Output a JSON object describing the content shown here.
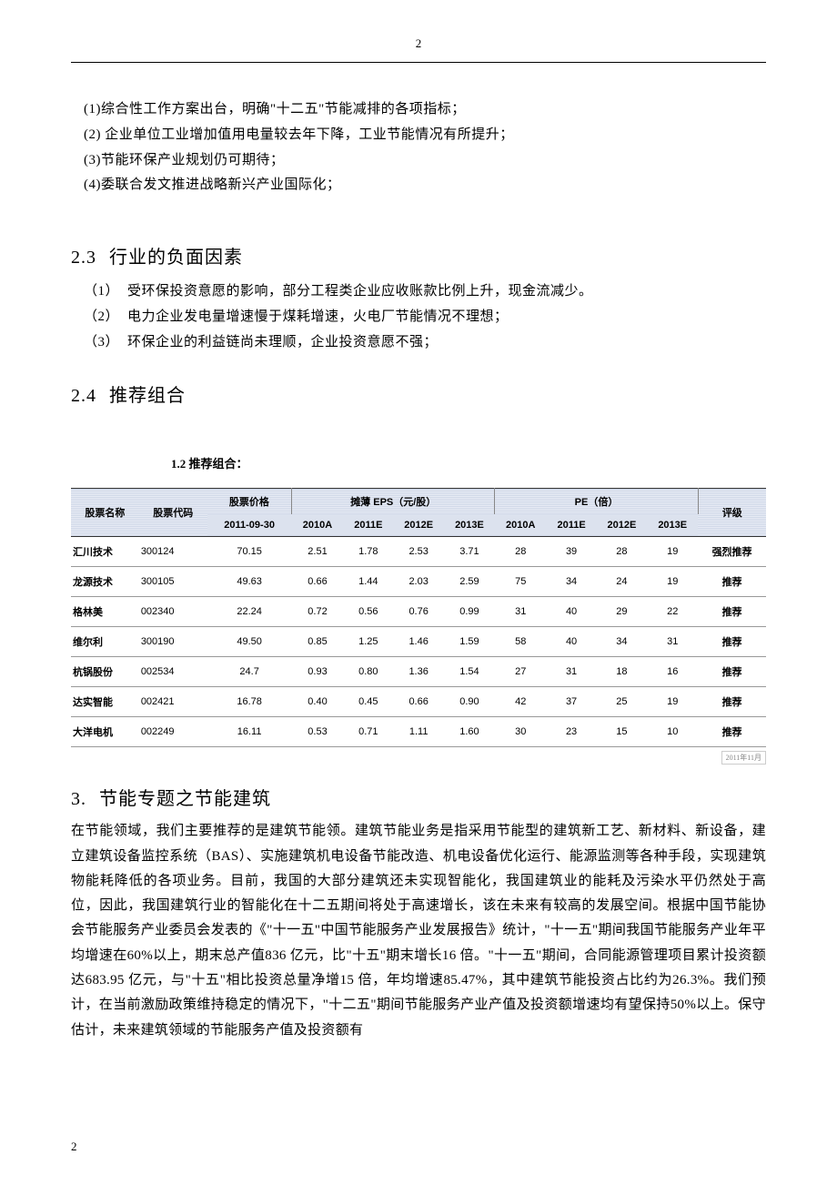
{
  "page_number_top": "2",
  "page_number_bottom": "2",
  "positive_items": [
    "(1)综合性工作方案出台，明确\"十二五\"节能减排的各项指标；",
    "(2) 企业单位工业增加值用电量较去年下降，工业节能情况有所提升；",
    "(3)节能环保产业规划仍可期待；",
    "(4)委联合发文推进战略新兴产业国际化；"
  ],
  "section_2_3": {
    "num": "2.3",
    "title": "行业的负面因素"
  },
  "negative_items": [
    {
      "num": "（1）",
      "text": "受环保投资意愿的影响，部分工程类企业应收账款比例上升，现金流减少。"
    },
    {
      "num": "（2）",
      "text": "电力企业发电量增速慢于煤耗增速，火电厂节能情况不理想；"
    },
    {
      "num": "（3）",
      "text": "环保企业的利益链尚未理顺，企业投资意愿不强；"
    }
  ],
  "section_2_4": {
    "num": "2.4",
    "title": "推荐组合"
  },
  "table_caption": "1.2 推荐组合：",
  "table": {
    "headers": {
      "name": "股票名称",
      "code": "股票代码",
      "price": "股票价格",
      "price_date": "2011-09-30",
      "eps_group": "摊薄 EPS（元/股）",
      "pe_group": "PE（倍）",
      "rating": "评级",
      "years": [
        "2010A",
        "2011E",
        "2012E",
        "2013E"
      ]
    },
    "rows": [
      {
        "name": "汇川技术",
        "code": "300124",
        "price": "70.15",
        "eps": [
          "2.51",
          "1.78",
          "2.53",
          "3.71"
        ],
        "pe": [
          "28",
          "39",
          "28",
          "19"
        ],
        "rating": "强烈推荐"
      },
      {
        "name": "龙源技术",
        "code": "300105",
        "price": "49.63",
        "eps": [
          "0.66",
          "1.44",
          "2.03",
          "2.59"
        ],
        "pe": [
          "75",
          "34",
          "24",
          "19"
        ],
        "rating": "推荐"
      },
      {
        "name": "格林美",
        "code": "002340",
        "price": "22.24",
        "eps": [
          "0.72",
          "0.56",
          "0.76",
          "0.99"
        ],
        "pe": [
          "31",
          "40",
          "29",
          "22"
        ],
        "rating": "推荐"
      },
      {
        "name": "维尔利",
        "code": "300190",
        "price": "49.50",
        "eps": [
          "0.85",
          "1.25",
          "1.46",
          "1.59"
        ],
        "pe": [
          "58",
          "40",
          "34",
          "31"
        ],
        "rating": "推荐"
      },
      {
        "name": "杭锅股份",
        "code": "002534",
        "price": "24.7",
        "eps": [
          "0.93",
          "0.80",
          "1.36",
          "1.54"
        ],
        "pe": [
          "27",
          "31",
          "18",
          "16"
        ],
        "rating": "推荐"
      },
      {
        "name": "达实智能",
        "code": "002421",
        "price": "16.78",
        "eps": [
          "0.40",
          "0.45",
          "0.66",
          "0.90"
        ],
        "pe": [
          "42",
          "37",
          "25",
          "19"
        ],
        "rating": "推荐"
      },
      {
        "name": "大洋电机",
        "code": "002249",
        "price": "16.11",
        "eps": [
          "0.53",
          "0.71",
          "1.11",
          "1.60"
        ],
        "pe": [
          "30",
          "23",
          "15",
          "10"
        ],
        "rating": "推荐"
      }
    ]
  },
  "table_footer": "2011年11月",
  "section_3": {
    "num": "3.",
    "title": "节能专题之节能建筑"
  },
  "body_text": "在节能领域，我们主要推荐的是建筑节能领。建筑节能业务是指采用节能型的建筑新工艺、新材料、新设备，建立建筑设备监控系统（BAS）、实施建筑机电设备节能改造、机电设备优化运行、能源监测等各种手段，实现建筑物能耗降低的各项业务。目前，我国的大部分建筑还未实现智能化，我国建筑业的能耗及污染水平仍然处于高位，因此，我国建筑行业的智能化在十二五期间将处于高速增长，该在未来有较高的发展空间。根据中国节能协会节能服务产业委员会发表的《\"十一五\"中国节能服务产业发展报告》统计，\"十一五\"期间我国节能服务产业年平均增速在60%以上，期末总产值836 亿元，比\"十五\"期末增长16 倍。\"十一五\"期间，合同能源管理项目累计投资额达683.95 亿元，与\"十五\"相比投资总量净增15 倍，年均增速85.47%，其中建筑节能投资占比约为26.3%。我们预计，在当前激励政策维持稳定的情况下，\"十二五\"期间节能服务产业产值及投资额增速均有望保持50%以上。保守估计，未来建筑领域的节能服务产值及投资额有",
  "colors": {
    "text": "#000000",
    "background": "#ffffff",
    "table_header_bg": "#d8dfed",
    "table_border": "#999999"
  }
}
